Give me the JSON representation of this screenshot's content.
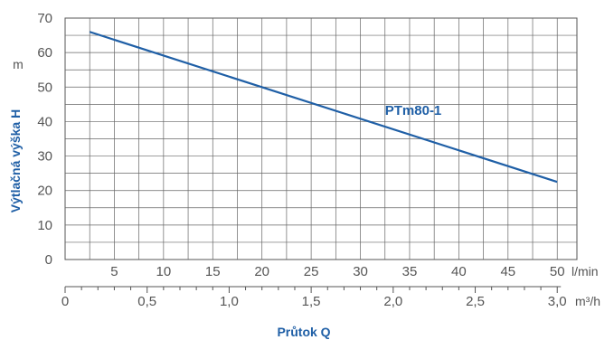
{
  "chart_data": {
    "type": "line",
    "xlabel": "Průtok Q",
    "ylabel": "Výtlačná výška H",
    "y_unit": "m",
    "x_unit": "l/min",
    "x2_unit": "m³/h",
    "xlim": [
      0,
      52
    ],
    "ylim": [
      0,
      70
    ],
    "x_ticks": [
      5,
      10,
      15,
      20,
      25,
      30,
      35,
      40,
      45,
      50
    ],
    "y_ticks": [
      0,
      10,
      20,
      30,
      40,
      50,
      60,
      70
    ],
    "x2_ticks": [
      "0",
      "0,5",
      "1,0",
      "1,5",
      "2,0",
      "2,5",
      "3,0"
    ],
    "x2_tick_values": [
      0,
      0.5,
      1.0,
      1.5,
      2.0,
      2.5,
      3.0
    ],
    "grid": true,
    "series": [
      {
        "name": "PTm80-1",
        "color": "#1f5fa6",
        "x": [
          2.5,
          50
        ],
        "y": [
          66,
          22.5
        ]
      }
    ]
  }
}
